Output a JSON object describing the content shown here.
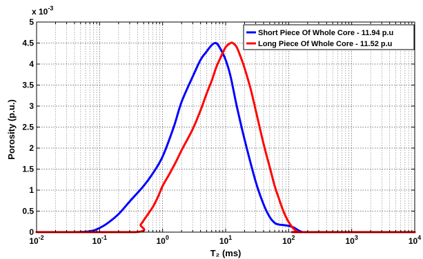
{
  "chart_data": {
    "type": "line",
    "xlabel": "T₂ (ms)",
    "ylabel": "Porosity (p.u.)",
    "x_scale": "log",
    "xlim": [
      0.01,
      10000
    ],
    "ylim": [
      0,
      0.005
    ],
    "y_multiplier_label": "x 10",
    "y_multiplier_exponent": "-3",
    "grid": true,
    "legend_position": "top-right",
    "x_ticks": [
      {
        "value": 0.01,
        "base": "10",
        "exp": "-2"
      },
      {
        "value": 0.1,
        "base": "10",
        "exp": "-1"
      },
      {
        "value": 1,
        "base": "10",
        "exp": "0"
      },
      {
        "value": 10,
        "base": "10",
        "exp": "1"
      },
      {
        "value": 100,
        "base": "10",
        "exp": "2"
      },
      {
        "value": 1000,
        "base": "10",
        "exp": "3"
      },
      {
        "value": 10000,
        "base": "10",
        "exp": "4"
      }
    ],
    "y_ticks": [
      {
        "value": 0,
        "label": "0"
      },
      {
        "value": 0.0005,
        "label": "0.5"
      },
      {
        "value": 0.001,
        "label": "1"
      },
      {
        "value": 0.0015,
        "label": "1.5"
      },
      {
        "value": 0.002,
        "label": "2"
      },
      {
        "value": 0.0025,
        "label": "2.5"
      },
      {
        "value": 0.003,
        "label": "3"
      },
      {
        "value": 0.0035,
        "label": "3.5"
      },
      {
        "value": 0.004,
        "label": "4"
      },
      {
        "value": 0.0045,
        "label": "4.5"
      },
      {
        "value": 0.005,
        "label": "5"
      }
    ],
    "series": [
      {
        "name": "Short Piece Of Whole Core - 11.94 p.u",
        "color": "#0000ff",
        "x": [
          0.01,
          0.04,
          0.06,
          0.08,
          0.1,
          0.13,
          0.2,
          0.3,
          0.5,
          0.7,
          1,
          1.5,
          2,
          3,
          4,
          5,
          6,
          7,
          8,
          10,
          12,
          15,
          20,
          30,
          40,
          50,
          60,
          70,
          80,
          100,
          120,
          140,
          160,
          200,
          10000
        ],
        "y": [
          0,
          0,
          1e-05,
          4e-05,
          0.0001,
          0.0002,
          0.00043,
          0.00073,
          0.0011,
          0.0014,
          0.0018,
          0.0025,
          0.0031,
          0.0037,
          0.0041,
          0.0043,
          0.00445,
          0.0045,
          0.0044,
          0.0041,
          0.0037,
          0.003,
          0.0022,
          0.0012,
          0.00066,
          0.00036,
          0.00022,
          0.00018,
          0.00017,
          0.00015,
          0.00011,
          5e-05,
          1e-05,
          0,
          0
        ]
      },
      {
        "name": "Long Piece Of Whole Core - 11.52 p.u",
        "color": "#ff0000",
        "x": [
          0.01,
          0.37,
          0.45,
          0.55,
          0.7,
          0.85,
          1,
          1.3,
          1.7,
          2,
          3,
          4,
          5,
          6,
          7,
          8,
          10,
          12,
          13,
          15,
          18,
          20,
          25,
          30,
          40,
          50,
          60,
          70,
          80,
          90,
          100,
          110,
          120,
          130,
          140,
          160,
          10000
        ],
        "y": [
          0,
          0,
          0.00018,
          0.00037,
          0.0006,
          0.00085,
          0.0011,
          0.0014,
          0.00173,
          0.00195,
          0.00245,
          0.0029,
          0.0033,
          0.0036,
          0.0039,
          0.0041,
          0.0044,
          0.0045,
          0.0045,
          0.0044,
          0.0041,
          0.0039,
          0.0034,
          0.0029,
          0.0021,
          0.00155,
          0.0011,
          0.0008,
          0.00055,
          0.00037,
          0.00024,
          0.00015,
          8e-05,
          4e-05,
          1e-05,
          0,
          0
        ]
      }
    ]
  }
}
